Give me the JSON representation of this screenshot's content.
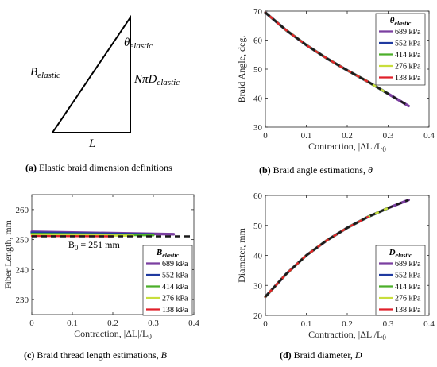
{
  "colors": {
    "p689": "#7b3fa0",
    "p552": "#1f3aa0",
    "p414": "#4caf2a",
    "p276": "#c8de3c",
    "p138": "#e0202a",
    "fit": "#1a1a1a"
  },
  "captions": {
    "a": {
      "tag": "(a)",
      "text": "Elastic braid dimension definitions"
    },
    "b": {
      "tag": "(b)",
      "text": "Braid angle estimations, ",
      "sym": "θ"
    },
    "c": {
      "tag": "(c)",
      "text": "Braid thread length estimations, ",
      "sym": "B"
    },
    "d": {
      "tag": "(d)",
      "text": "Braid diameter, ",
      "sym": "D"
    }
  },
  "diagram": {
    "hyp_label_main": "B",
    "hyp_label_sub": "elastic",
    "angle_label_main": "θ",
    "angle_label_sub": "elastic",
    "vert_label_main": "NπD",
    "vert_label_sub": "elastic",
    "base_label": "L"
  },
  "legend_entries": [
    "689 kPa",
    "552 kPa",
    "414 kPa",
    "276 kPa",
    "138 kPa"
  ],
  "chart_data": [
    {
      "id": "b",
      "type": "line",
      "ylabel": "Braid Angle, deg.",
      "xlabel": "Contraction, |ΔL|/L",
      "xlabel_sub": "0",
      "xlim": [
        0,
        0.4
      ],
      "ylim": [
        30,
        70
      ],
      "xticks": [
        0,
        0.1,
        0.2,
        0.3,
        0.4
      ],
      "yticks": [
        30,
        40,
        50,
        60,
        70
      ],
      "legend_title_main": "θ",
      "legend_title_sub": "elastic",
      "legend_position": "top-right",
      "series": [
        {
          "name": "689 kPa",
          "color_key": "p689",
          "x": [
            0,
            0.05,
            0.1,
            0.15,
            0.2,
            0.25,
            0.3,
            0.35
          ],
          "y": [
            69.5,
            63.5,
            58.3,
            53.7,
            49.6,
            45.7,
            41.5,
            37.3
          ]
        },
        {
          "name": "552 kPa",
          "color_key": "p552",
          "x": [
            0,
            0.05,
            0.1,
            0.15,
            0.2,
            0.25,
            0.3
          ],
          "y": [
            69.5,
            63.5,
            58.3,
            53.7,
            49.6,
            45.7,
            41.5
          ]
        },
        {
          "name": "414 kPa",
          "color_key": "p414",
          "x": [
            0,
            0.05,
            0.1,
            0.15,
            0.2,
            0.25,
            0.3
          ],
          "y": [
            69.5,
            63.5,
            58.3,
            53.7,
            49.6,
            45.7,
            41.5
          ]
        },
        {
          "name": "276 kPa",
          "color_key": "p276",
          "x": [
            0,
            0.05,
            0.1,
            0.15,
            0.2,
            0.25,
            0.3
          ],
          "y": [
            69.5,
            63.5,
            58.3,
            53.7,
            49.6,
            45.7,
            41.5
          ]
        },
        {
          "name": "138 kPa",
          "color_key": "p138",
          "x": [
            0,
            0.05,
            0.1,
            0.15,
            0.2,
            0.25
          ],
          "y": [
            69.5,
            63.5,
            58.3,
            53.7,
            49.6,
            45.7
          ]
        }
      ],
      "fit": {
        "x": [
          0,
          0.05,
          0.1,
          0.15,
          0.2,
          0.25,
          0.3,
          0.35
        ],
        "y": [
          69.5,
          63.5,
          58.3,
          53.7,
          49.6,
          45.7,
          41.5,
          37.3
        ]
      }
    },
    {
      "id": "c",
      "type": "line",
      "ylabel": "Fiber Length, mm",
      "xlabel": "Contraction, |ΔL|/L",
      "xlabel_sub": "0",
      "xlim": [
        0,
        0.4
      ],
      "ylim": [
        225,
        265
      ],
      "xticks": [
        0,
        0.1,
        0.2,
        0.3,
        0.4
      ],
      "yticks": [
        230,
        240,
        250,
        260
      ],
      "legend_title_main": "B",
      "legend_title_sub": "elastic",
      "legend_position": "bottom-right",
      "annotation_main": "B",
      "annotation_sub": "0",
      "annotation_rest": " = 251 mm",
      "annotation_xy": [
        0.09,
        248.3
      ],
      "series": [
        {
          "name": "689 kPa",
          "color_key": "p689",
          "x": [
            0,
            0.35
          ],
          "y": [
            252.6,
            251.8
          ]
        },
        {
          "name": "552 kPa",
          "color_key": "p552",
          "x": [
            0,
            0.3
          ],
          "y": [
            252.3,
            251.7
          ]
        },
        {
          "name": "414 kPa",
          "color_key": "p414",
          "x": [
            0,
            0.3
          ],
          "y": [
            251.9,
            251.5
          ]
        },
        {
          "name": "276 kPa",
          "color_key": "p276",
          "x": [
            0,
            0.25
          ],
          "y": [
            251.6,
            251.3
          ]
        },
        {
          "name": "138 kPa",
          "color_key": "p138",
          "x": [
            0,
            0.2
          ],
          "y": [
            251.2,
            251.1
          ]
        }
      ],
      "fit": {
        "x": [
          0,
          0.4
        ],
        "y": [
          251.1,
          251.1
        ]
      }
    },
    {
      "id": "d",
      "type": "line",
      "ylabel": "Diameter, mm",
      "xlabel": "Contraction, |ΔL|/L",
      "xlabel_sub": "0",
      "xlim": [
        0,
        0.4
      ],
      "ylim": [
        20,
        60
      ],
      "xticks": [
        0,
        0.1,
        0.2,
        0.3,
        0.4
      ],
      "yticks": [
        20,
        30,
        40,
        50,
        60
      ],
      "legend_title_main": "D",
      "legend_title_sub": "elastic",
      "legend_position": "bottom-right",
      "series": [
        {
          "name": "689 kPa",
          "color_key": "p689",
          "x": [
            0,
            0.05,
            0.1,
            0.15,
            0.2,
            0.25,
            0.3,
            0.35
          ],
          "y": [
            26.2,
            33.7,
            40.0,
            45.0,
            49.2,
            52.8,
            55.8,
            58.5
          ]
        },
        {
          "name": "552 kPa",
          "color_key": "p552",
          "x": [
            0,
            0.05,
            0.1,
            0.15,
            0.2,
            0.25,
            0.3
          ],
          "y": [
            26.2,
            33.7,
            40.0,
            45.0,
            49.2,
            52.8,
            55.8
          ]
        },
        {
          "name": "414 kPa",
          "color_key": "p414",
          "x": [
            0,
            0.05,
            0.1,
            0.15,
            0.2,
            0.25,
            0.3
          ],
          "y": [
            26.2,
            33.7,
            40.0,
            45.0,
            49.2,
            52.8,
            55.8
          ]
        },
        {
          "name": "276 kPa",
          "color_key": "p276",
          "x": [
            0,
            0.05,
            0.1,
            0.15,
            0.2,
            0.25,
            0.3
          ],
          "y": [
            26.2,
            33.7,
            40.0,
            45.0,
            49.2,
            52.8,
            55.8
          ]
        },
        {
          "name": "138 kPa",
          "color_key": "p138",
          "x": [
            0,
            0.05,
            0.1,
            0.15,
            0.2,
            0.25
          ],
          "y": [
            26.2,
            33.7,
            40.0,
            45.0,
            49.2,
            52.8
          ]
        }
      ],
      "fit": {
        "x": [
          0,
          0.05,
          0.1,
          0.15,
          0.2,
          0.25,
          0.3,
          0.35
        ],
        "y": [
          26.2,
          33.7,
          40.0,
          45.0,
          49.2,
          52.8,
          55.8,
          58.5
        ]
      }
    }
  ]
}
